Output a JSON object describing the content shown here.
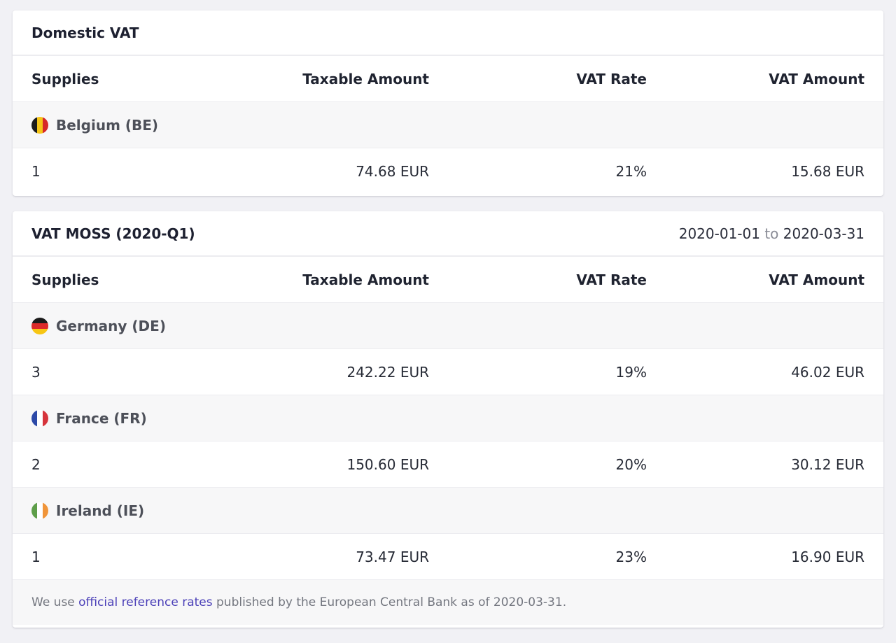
{
  "domestic": {
    "title": "Domestic VAT",
    "columns": [
      "Supplies",
      "Taxable Amount",
      "VAT Rate",
      "VAT Amount"
    ],
    "groups": [
      {
        "country": "Belgium (BE)",
        "flag_icon": "belgium-flag-icon",
        "flag_colors": [
          "#1b1b1b",
          "#f5c518",
          "#d62828"
        ],
        "row": {
          "supplies": "1",
          "taxable": "74.68 EUR",
          "rate": "21%",
          "vat": "15.68 EUR"
        }
      }
    ]
  },
  "moss": {
    "title": "VAT MOSS (2020-Q1)",
    "period_start": "2020-01-01",
    "period_sep": "to",
    "period_end": "2020-03-31",
    "columns": [
      "Supplies",
      "Taxable Amount",
      "VAT Rate",
      "VAT Amount"
    ],
    "groups": [
      {
        "country": "Germany (DE)",
        "flag_icon": "germany-flag-icon",
        "flag_colors": [
          "#1b1b1b",
          "#dd2a2a",
          "#f7c614"
        ],
        "row": {
          "supplies": "3",
          "taxable": "242.22 EUR",
          "rate": "19%",
          "vat": "46.02 EUR"
        }
      },
      {
        "country": "France (FR)",
        "flag_icon": "france-flag-icon",
        "flag_colors": [
          "#2d4aa8",
          "#ffffff",
          "#d6343c"
        ],
        "row": {
          "supplies": "2",
          "taxable": "150.60 EUR",
          "rate": "20%",
          "vat": "30.12 EUR"
        }
      },
      {
        "country": "Ireland (IE)",
        "flag_icon": "ireland-flag-icon",
        "flag_colors": [
          "#5e9e4a",
          "#ffffff",
          "#f0953a"
        ],
        "row": {
          "supplies": "1",
          "taxable": "73.47 EUR",
          "rate": "23%",
          "vat": "16.90 EUR"
        }
      }
    ],
    "footer": {
      "prefix": "We use ",
      "link": "official reference rates",
      "suffix": " published by the European Central Bank as of 2020-03-31."
    }
  }
}
